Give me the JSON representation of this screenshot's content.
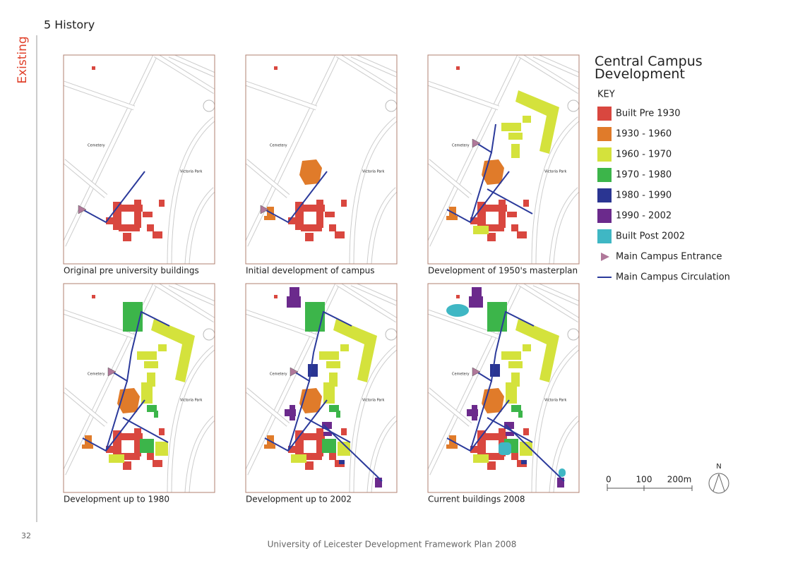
{
  "page": {
    "side_label": "Existing",
    "section_title": "5 History",
    "panels": [
      {
        "caption": "Original pre university buildings"
      },
      {
        "caption": "Initial development of campus"
      },
      {
        "caption": "Development of 1950's masterplan"
      },
      {
        "caption": "Development up to 1980"
      },
      {
        "caption": "Development up to 2002"
      },
      {
        "caption": "Current buildings 2008"
      }
    ],
    "map_labels": {
      "cemetery": "Cemetery",
      "park": "Victoria Park"
    },
    "key": {
      "title": "Central Campus Development",
      "heading": "KEY",
      "items": [
        {
          "label": "Built Pre 1930",
          "color": "#d9473f"
        },
        {
          "label": "1930 - 1960",
          "color": "#e07b2a"
        },
        {
          "label": "1960 - 1970",
          "color": "#d4e23c"
        },
        {
          "label": "1970 - 1980",
          "color": "#3cb54a"
        },
        {
          "label": "1980 - 1990",
          "color": "#2a3592"
        },
        {
          "label": "1990 - 2002",
          "color": "#6b2a8c"
        },
        {
          "label": "Built Post 2002",
          "color": "#3fb7c4"
        },
        {
          "label": "Main Campus Entrance",
          "color": "#b0789a"
        },
        {
          "label": "Main Campus Circulation",
          "color": "#2b3a9b"
        }
      ]
    },
    "scale": {
      "labels": [
        "0",
        "100",
        "200m"
      ],
      "north": "N"
    },
    "page_number": "32",
    "footer": "University of Leicester Development Framework Plan 2008"
  }
}
